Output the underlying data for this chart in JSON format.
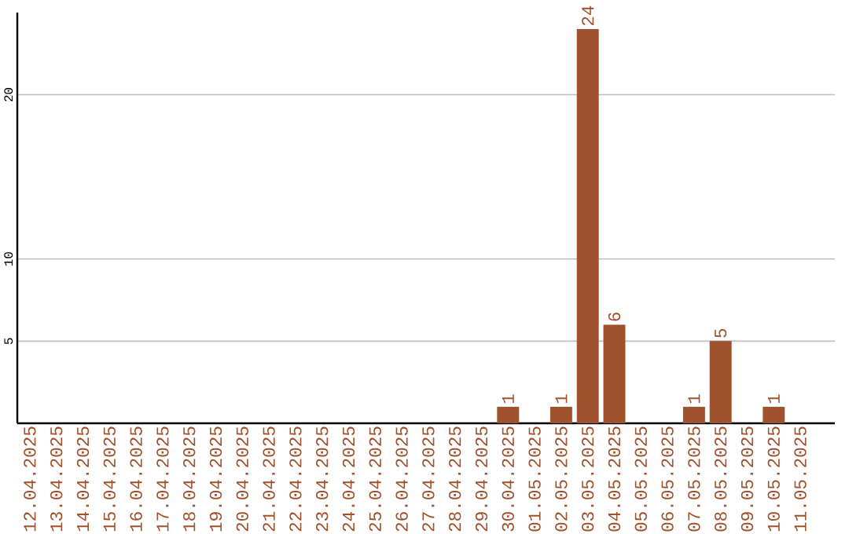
{
  "chart_data": {
    "type": "bar",
    "categories": [
      "12.04.2025",
      "13.04.2025",
      "14.04.2025",
      "15.04.2025",
      "16.04.2025",
      "17.04.2025",
      "18.04.2025",
      "19.04.2025",
      "20.04.2025",
      "21.04.2025",
      "22.04.2025",
      "23.04.2025",
      "24.04.2025",
      "25.04.2025",
      "26.04.2025",
      "27.04.2025",
      "28.04.2025",
      "29.04.2025",
      "30.04.2025",
      "01.05.2025",
      "02.05.2025",
      "03.05.2025",
      "04.05.2025",
      "05.05.2025",
      "06.05.2025",
      "07.05.2025",
      "08.05.2025",
      "09.05.2025",
      "10.05.2025",
      "11.05.2025"
    ],
    "values": [
      0,
      0,
      0,
      0,
      0,
      0,
      0,
      0,
      0,
      0,
      0,
      0,
      0,
      0,
      0,
      0,
      0,
      0,
      1,
      0,
      1,
      24,
      6,
      0,
      0,
      1,
      5,
      0,
      1,
      0
    ],
    "value_labels": [
      null,
      null,
      null,
      null,
      null,
      null,
      null,
      null,
      null,
      null,
      null,
      null,
      null,
      null,
      null,
      null,
      null,
      null,
      "1",
      null,
      "1",
      "24",
      "6",
      null,
      null,
      "1",
      "5",
      null,
      "1",
      null
    ],
    "color": "#a0522d",
    "ylim": [
      0,
      25
    ],
    "yticks": [
      5,
      10,
      20
    ],
    "grid": "y"
  }
}
